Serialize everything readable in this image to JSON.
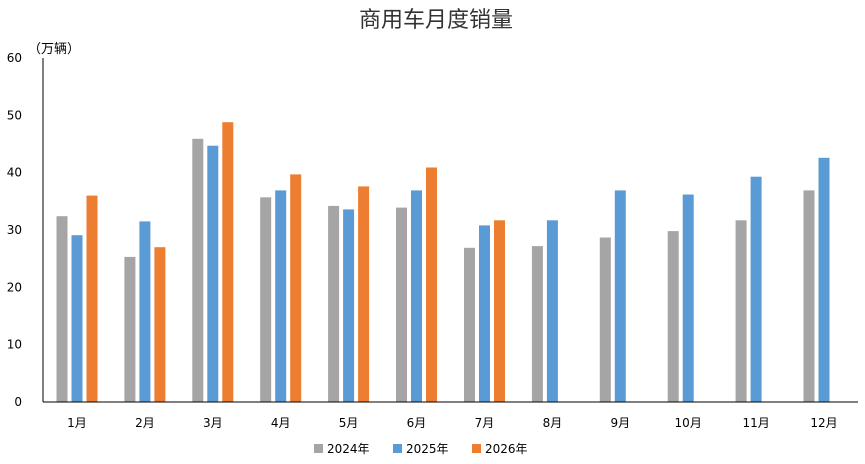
{
  "chart_data": {
    "type": "bar",
    "title": "商用车月度销量",
    "unit_label": "（万辆）",
    "xlabel": "",
    "ylabel": "",
    "ylim": [
      0,
      60
    ],
    "yticks": [
      "0",
      "10",
      "20",
      "30",
      "40",
      "50",
      "60"
    ],
    "categories": [
      "1月",
      "2月",
      "3月",
      "4月",
      "5月",
      "6月",
      "7月",
      "8月",
      "9月",
      "10月",
      "11月",
      "12月"
    ],
    "series": [
      {
        "name": "2024年",
        "color": "#a5a5a5",
        "values": [
          32.4,
          25.3,
          45.9,
          35.7,
          34.2,
          33.9,
          26.9,
          27.2,
          28.7,
          29.8,
          31.7,
          36.9
        ]
      },
      {
        "name": "2025年",
        "color": "#5b9bd5",
        "values": [
          29.1,
          31.5,
          44.7,
          36.9,
          33.6,
          36.9,
          30.8,
          31.7,
          36.9,
          36.2,
          39.3,
          42.6
        ]
      },
      {
        "name": "2026年",
        "color": "#ed7d31",
        "values": [
          36.0,
          27.0,
          48.8,
          39.7,
          37.6,
          40.9,
          31.7,
          null,
          null,
          null,
          null,
          null
        ]
      }
    ],
    "grid": false,
    "legend_position": "bottom"
  }
}
